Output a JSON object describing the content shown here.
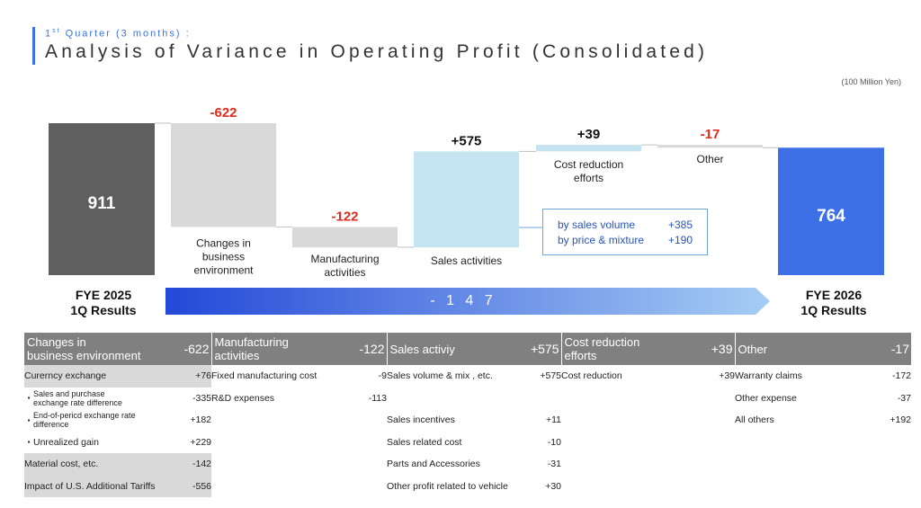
{
  "header": {
    "subtitle_prefix": "1",
    "subtitle_sup": "st",
    "subtitle_rest": " Quarter (3 months) :",
    "title": "Analysis of Variance in Operating Profit (Consolidated)",
    "unit": "(100 Million Yen)"
  },
  "colors": {
    "start_bar": "#5f5f5f",
    "negative": "#d9d9d9",
    "positive": "#c5e4f1",
    "end_bar": "#3d6fe6",
    "negative_label": "#e02a1c",
    "arrow_start": "#2448d8",
    "arrow_end": "#a6cdf4",
    "table_header": "#808080"
  },
  "chart_data": {
    "type": "waterfall",
    "start": {
      "label_line1": "FYE 2025",
      "label_line2": "1Q Results",
      "value": 911,
      "value_label": "911"
    },
    "end": {
      "label_line1": "FYE 2026",
      "label_line2": "1Q Results",
      "value": 764,
      "value_label": "764"
    },
    "steps": [
      {
        "name": "Changes in business environment",
        "lines": [
          "Changes in",
          "business",
          "environment"
        ],
        "value": -622,
        "value_label": "-622"
      },
      {
        "name": "Manufacturing activities",
        "lines": [
          "Manufacturing",
          "activities"
        ],
        "value": -122,
        "value_label": "-122"
      },
      {
        "name": "Sales activities",
        "lines": [
          "Sales activities"
        ],
        "value": 575,
        "value_label": "+575"
      },
      {
        "name": "Cost reduction efforts",
        "lines": [
          "Cost reduction",
          "efforts"
        ],
        "value": 39,
        "value_label": "+39"
      },
      {
        "name": "Other",
        "lines": [
          "Other"
        ],
        "value": -17,
        "value_label": "-17"
      }
    ],
    "total_change": {
      "value": -147,
      "label": "- 1 4 7"
    },
    "breakdown": [
      {
        "label": "by sales volume",
        "value": "+385"
      },
      {
        "label": "by price & mixture",
        "value": "+190"
      }
    ]
  },
  "table": {
    "columns": [
      {
        "title_line1": "Changes in",
        "title_line2": "business environment",
        "value": "-622"
      },
      {
        "title_line1": "Manufacturing",
        "title_line2": "activities",
        "value": "-122"
      },
      {
        "title_line1": "Sales activiy",
        "title_line2": "",
        "value": "+575"
      },
      {
        "title_line1": "Cost reduction",
        "title_line2": "efforts",
        "value": "+39"
      },
      {
        "title_line1": "Other",
        "title_line2": "",
        "value": "-17"
      }
    ],
    "col1": [
      {
        "label": "Curerncy exchange",
        "value": "+76"
      },
      {
        "label_line1": "Sales and purchase",
        "label_line2": "exchange rate difference",
        "value": "-335"
      },
      {
        "label_line1": "End-of-pericd exchange rate",
        "label_line2": "difference",
        "value": "+182"
      },
      {
        "label": "Unrealized gain",
        "value": "+229"
      },
      {
        "label": "Material cost, etc.",
        "value": "-142"
      },
      {
        "label": "Impact of U.S. Additional Tariffs",
        "value": "-556"
      }
    ],
    "col2": [
      {
        "label": "Fixed manufacturing cost",
        "value": "-9"
      },
      {
        "label": "R&D expenses",
        "value": "-113"
      }
    ],
    "col3": [
      {
        "label": "Sales volume & mix , etc.",
        "value": "+575"
      },
      {
        "label": "",
        "value": ""
      },
      {
        "label": "Sales incentives",
        "value": "+11"
      },
      {
        "label": "Sales related cost",
        "value": "-10"
      },
      {
        "label": "Parts and Accessories",
        "value": "-31"
      },
      {
        "label": "Other profit related to vehicle",
        "value": "+30"
      }
    ],
    "col4": [
      {
        "label": "Cost reduction",
        "value": "+39"
      }
    ],
    "col5": [
      {
        "label": "Warranty claims",
        "value": "-172"
      },
      {
        "label": "Other expense",
        "value": "-37"
      },
      {
        "label": "All others",
        "value": "+192"
      }
    ]
  }
}
